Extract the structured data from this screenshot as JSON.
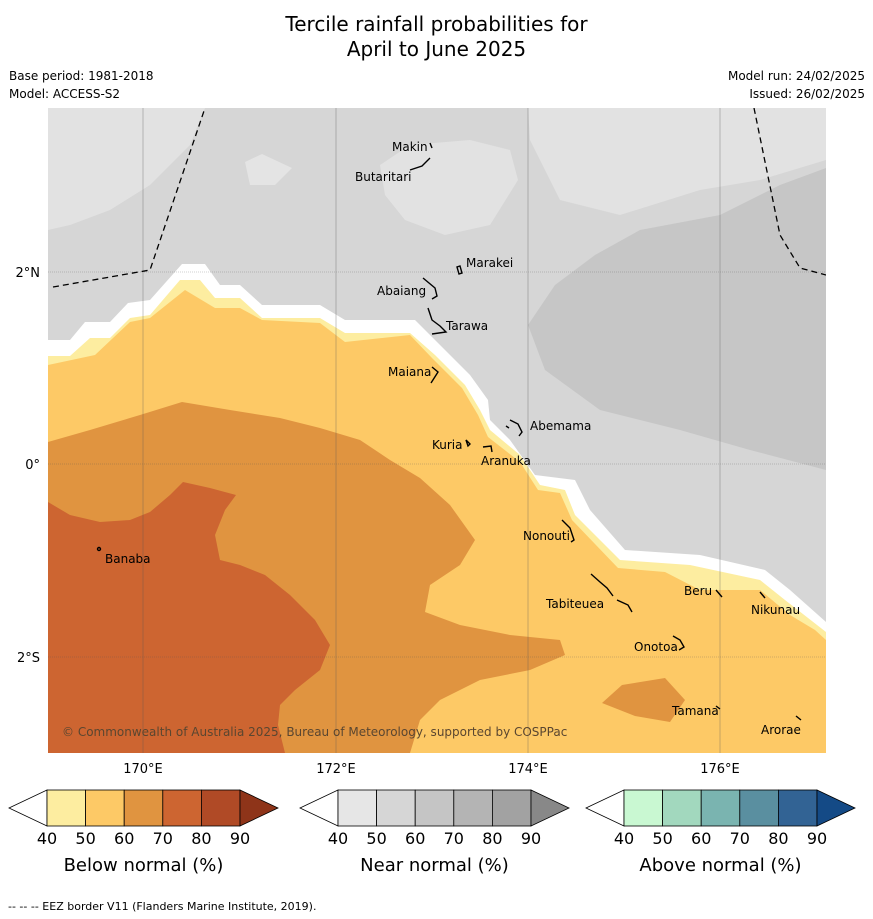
{
  "title_line1": "Tercile rainfall probabilities for",
  "title_line2": "April to June 2025",
  "meta": {
    "base_period": "Base period: 1981-2018",
    "model": "Model: ACCESS-S2",
    "model_run": "Model run: 24/02/2025",
    "issued": "Issued: 26/02/2025"
  },
  "axes": {
    "lat_labels": [
      "2°N",
      "0°",
      "2°S"
    ],
    "lon_labels": [
      "170°E",
      "172°E",
      "174°E",
      "176°E"
    ]
  },
  "places": [
    "Makin",
    "Butaritari",
    "Marakei",
    "Abaiang",
    "Tarawa",
    "Maiana",
    "Abemama",
    "Kuria",
    "Aranuka",
    "Nonouti",
    "Banaba",
    "Tabiteuea",
    "Beru",
    "Nikunau",
    "Onotoa",
    "Tamana",
    "Arorae"
  ],
  "credit": "© Commonwealth of Australia 2025, Bureau of Meteorology, supported by COSPPac",
  "colorbars": [
    {
      "label": "Below normal (%)",
      "ticks": [
        "40",
        "50",
        "60",
        "70",
        "80",
        "90"
      ],
      "colors": [
        "#fdeda0",
        "#fdc966",
        "#e09440",
        "#cd6531",
        "#b04a26",
        "#8e3419"
      ]
    },
    {
      "label": "Near normal (%)",
      "ticks": [
        "40",
        "50",
        "60",
        "70",
        "80",
        "90"
      ],
      "colors": [
        "#e6e6e6",
        "#d6d6d6",
        "#c5c5c5",
        "#b4b4b4",
        "#a2a2a2",
        "#888888"
      ]
    },
    {
      "label": "Above normal (%)",
      "ticks": [
        "40",
        "50",
        "60",
        "70",
        "80",
        "90"
      ],
      "colors": [
        "#c9f8d2",
        "#a2d8be",
        "#7ab4b0",
        "#5a8fa0",
        "#326394",
        "#144a86"
      ]
    }
  ],
  "footnote": "-- -- -- EEZ border V11 (Flanders Marine Institute, 2019)."
}
